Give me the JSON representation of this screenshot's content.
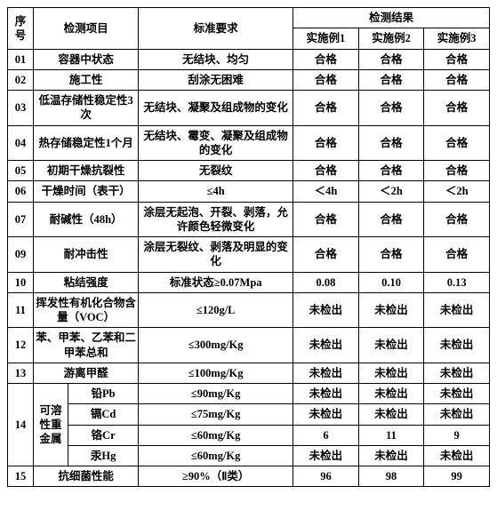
{
  "header": {
    "seq": "序号",
    "item": "检测项目",
    "req": "标准要求",
    "result": "检测结果",
    "r1": "实施例1",
    "r2": "实施例2",
    "r3": "实施例3"
  },
  "rows": {
    "1": {
      "seq": "01",
      "item": "容器中状态",
      "req": "无结块、均匀",
      "v1": "合格",
      "v2": "合格",
      "v3": "合格"
    },
    "2": {
      "seq": "02",
      "item": "施工性",
      "req": "刮涂无困难",
      "v1": "合格",
      "v2": "合格",
      "v3": "合格"
    },
    "3": {
      "seq": "03",
      "item": "低温存储性稳定性3次",
      "req": "无结块、凝聚及组成物的变化",
      "v1": "合格",
      "v2": "合格",
      "v3": "合格"
    },
    "4": {
      "seq": "04",
      "item": "热存储稳定性1个月",
      "req": "无结块、霉变、凝聚及组成物的变化",
      "v1": "合格",
      "v2": "合格",
      "v3": "合格"
    },
    "5": {
      "seq": "05",
      "item": "初期干燥抗裂性",
      "req": "无裂纹",
      "v1": "合格",
      "v2": "合格",
      "v3": "合格"
    },
    "6": {
      "seq": "06",
      "item": "干燥时间（表干）",
      "req": "≤4h",
      "v1": "＜4h",
      "v2": "＜2h",
      "v3": "＜2h"
    },
    "7": {
      "seq": "07",
      "item": "耐碱性（48h）",
      "req": "涂层无起泡、开裂、剥落，允许颜色轻微变化",
      "v1": "合格",
      "v2": "合格",
      "v3": "合格"
    },
    "9": {
      "seq": "09",
      "item": "耐冲击性",
      "req": "涂层无裂纹、剥落及明显的变化",
      "v1": "合格",
      "v2": "合格",
      "v3": "合格"
    },
    "10": {
      "seq": "10",
      "item": "粘结强度",
      "req": "标准状态≥0.07Mpa",
      "v1": "0.08",
      "v2": "0.10",
      "v3": "0.13"
    },
    "11": {
      "seq": "11",
      "item": "挥发性有机化合物含量（VOC）",
      "req": "≤120g/L",
      "v1": "未检出",
      "v2": "未检出",
      "v3": "未检出"
    },
    "12": {
      "seq": "12",
      "item": "苯、甲苯、乙苯和二甲苯总和",
      "req": "≤300mg/Kg",
      "v1": "未检出",
      "v2": "未检出",
      "v3": "未检出"
    },
    "13": {
      "seq": "13",
      "item": "游离甲醛",
      "req": "≤100mg/Kg",
      "v1": "未检出",
      "v2": "未检出",
      "v3": "未检出"
    },
    "14": {
      "seq": "14",
      "group": "可溶性重金属",
      "a": {
        "item": "铅Pb",
        "req": "≤90mg/Kg",
        "v1": "未检出",
        "v2": "未检出",
        "v3": "未检出"
      },
      "b": {
        "item": "镉Cd",
        "req": "≤75mg/Kg",
        "v1": "未检出",
        "v2": "未检出",
        "v3": "未检出"
      },
      "c": {
        "item": "铬Cr",
        "req": "≤60mg/Kg",
        "v1": "6",
        "v2": "11",
        "v3": "9"
      },
      "d": {
        "item": "汞Hg",
        "req": "≤60mg/Kg",
        "v1": "未检出",
        "v2": "未检出",
        "v3": "未检出"
      }
    },
    "15": {
      "seq": "15",
      "item": "抗细菌性能",
      "req": "≥90%（Ⅱ类）",
      "v1": "96",
      "v2": "98",
      "v3": "99"
    }
  }
}
